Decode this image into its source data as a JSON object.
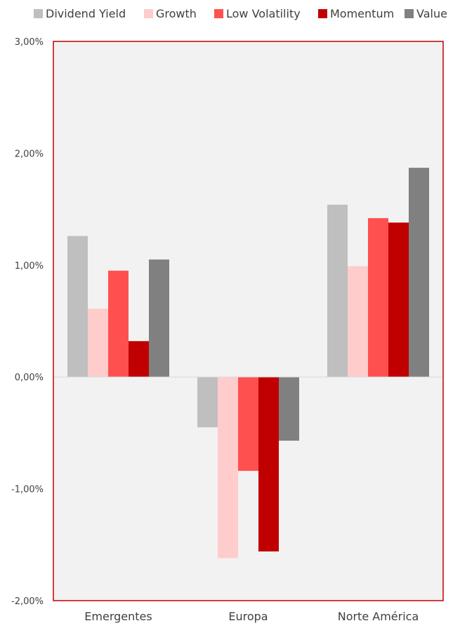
{
  "chart_data": {
    "type": "bar",
    "categories": [
      "Emergentes",
      "Europa",
      "Norte América"
    ],
    "series": [
      {
        "name": "Dividend Yield",
        "color": "#bfbfbf",
        "values": [
          1.26,
          -0.45,
          1.54
        ]
      },
      {
        "name": "Growth",
        "color": "#ffcccc",
        "values": [
          0.61,
          -1.62,
          0.99
        ]
      },
      {
        "name": "Low Volatility",
        "color": "#ff5050",
        "values": [
          0.95,
          -0.84,
          1.42
        ]
      },
      {
        "name": "Momentum",
        "color": "#c00000",
        "values": [
          0.32,
          -1.56,
          1.38
        ]
      },
      {
        "name": "Value",
        "color": "#808080",
        "values": [
          1.05,
          -0.57,
          1.87
        ]
      }
    ],
    "ylim": [
      -2,
      3
    ],
    "yticks": [
      -2,
      -1,
      0,
      1,
      2,
      3
    ],
    "ytick_labels": [
      "-2,00%",
      "-1,00%",
      "0,00%",
      "1,00%",
      "2,00%",
      "3,00%"
    ],
    "legend_position": "top",
    "plot_background": "#f2f2f2",
    "plot_border_color": "#c00000",
    "grid": false
  }
}
